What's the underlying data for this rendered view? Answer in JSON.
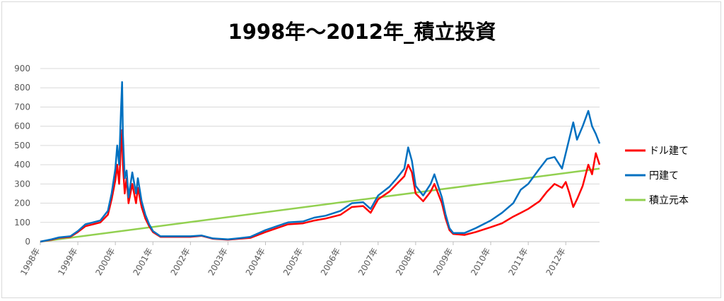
{
  "chart_data": {
    "type": "line",
    "title": "1998年～2012年_積立投資",
    "xlabel": "",
    "ylabel": "",
    "ylim": [
      0,
      900
    ],
    "yticks": [
      0,
      100,
      200,
      300,
      400,
      500,
      600,
      700,
      800,
      900
    ],
    "xlim": [
      1998.0,
      2012.9
    ],
    "xticks": [
      {
        "value": 1998,
        "label": "1998年"
      },
      {
        "value": 1999,
        "label": "1999年"
      },
      {
        "value": 2000,
        "label": "2000年"
      },
      {
        "value": 2001,
        "label": "2001年"
      },
      {
        "value": 2002,
        "label": "2002年"
      },
      {
        "value": 2003,
        "label": "2003年"
      },
      {
        "value": 2004,
        "label": "2004年"
      },
      {
        "value": 2005,
        "label": "2005年"
      },
      {
        "value": 2006,
        "label": "2006年"
      },
      {
        "value": 2007,
        "label": "2007年"
      },
      {
        "value": 2008,
        "label": "2008年"
      },
      {
        "value": 2009,
        "label": "2009年"
      },
      {
        "value": 2010,
        "label": "2010年"
      },
      {
        "value": 2011,
        "label": "2011年"
      },
      {
        "value": 2012,
        "label": "2012年"
      }
    ],
    "grid": true,
    "legend_position": "right",
    "series": [
      {
        "name": "ドル建て",
        "color": "#ff0000",
        "points": [
          [
            1998.0,
            0
          ],
          [
            1998.3,
            10
          ],
          [
            1998.5,
            20
          ],
          [
            1998.8,
            25
          ],
          [
            1999.0,
            50
          ],
          [
            1999.2,
            80
          ],
          [
            1999.4,
            90
          ],
          [
            1999.6,
            100
          ],
          [
            1999.8,
            140
          ],
          [
            1999.9,
            220
          ],
          [
            2000.0,
            320
          ],
          [
            2000.05,
            400
          ],
          [
            2000.1,
            300
          ],
          [
            2000.15,
            500
          ],
          [
            2000.18,
            580
          ],
          [
            2000.2,
            400
          ],
          [
            2000.25,
            250
          ],
          [
            2000.3,
            330
          ],
          [
            2000.35,
            200
          ],
          [
            2000.45,
            300
          ],
          [
            2000.55,
            200
          ],
          [
            2000.6,
            280
          ],
          [
            2000.7,
            180
          ],
          [
            2000.8,
            120
          ],
          [
            2000.9,
            80
          ],
          [
            2001.0,
            50
          ],
          [
            2001.2,
            25
          ],
          [
            2001.5,
            25
          ],
          [
            2002.0,
            25
          ],
          [
            2002.3,
            30
          ],
          [
            2002.6,
            15
          ],
          [
            2003.0,
            10
          ],
          [
            2003.3,
            15
          ],
          [
            2003.6,
            20
          ],
          [
            2004.0,
            50
          ],
          [
            2004.3,
            70
          ],
          [
            2004.6,
            90
          ],
          [
            2005.0,
            95
          ],
          [
            2005.3,
            110
          ],
          [
            2005.6,
            120
          ],
          [
            2006.0,
            140
          ],
          [
            2006.3,
            180
          ],
          [
            2006.6,
            185
          ],
          [
            2006.8,
            150
          ],
          [
            2007.0,
            220
          ],
          [
            2007.3,
            260
          ],
          [
            2007.5,
            300
          ],
          [
            2007.7,
            340
          ],
          [
            2007.8,
            400
          ],
          [
            2007.9,
            360
          ],
          [
            2008.0,
            250
          ],
          [
            2008.2,
            210
          ],
          [
            2008.4,
            260
          ],
          [
            2008.5,
            300
          ],
          [
            2008.7,
            200
          ],
          [
            2008.8,
            120
          ],
          [
            2008.9,
            60
          ],
          [
            2009.0,
            40
          ],
          [
            2009.3,
            35
          ],
          [
            2009.6,
            50
          ],
          [
            2010.0,
            75
          ],
          [
            2010.3,
            95
          ],
          [
            2010.6,
            130
          ],
          [
            2010.8,
            150
          ],
          [
            2011.0,
            170
          ],
          [
            2011.3,
            210
          ],
          [
            2011.5,
            260
          ],
          [
            2011.7,
            300
          ],
          [
            2011.9,
            280
          ],
          [
            2012.0,
            310
          ],
          [
            2012.1,
            250
          ],
          [
            2012.2,
            180
          ],
          [
            2012.3,
            220
          ],
          [
            2012.45,
            290
          ],
          [
            2012.6,
            400
          ],
          [
            2012.7,
            350
          ],
          [
            2012.8,
            460
          ],
          [
            2012.9,
            400
          ]
        ]
      },
      {
        "name": "円建て",
        "color": "#0070c0",
        "points": [
          [
            1998.0,
            0
          ],
          [
            1998.3,
            12
          ],
          [
            1998.5,
            22
          ],
          [
            1998.8,
            28
          ],
          [
            1999.0,
            55
          ],
          [
            1999.2,
            90
          ],
          [
            1999.4,
            100
          ],
          [
            1999.6,
            110
          ],
          [
            1999.8,
            160
          ],
          [
            1999.9,
            250
          ],
          [
            2000.0,
            380
          ],
          [
            2000.05,
            500
          ],
          [
            2000.1,
            400
          ],
          [
            2000.15,
            680
          ],
          [
            2000.18,
            830
          ],
          [
            2000.2,
            560
          ],
          [
            2000.25,
            330
          ],
          [
            2000.3,
            370
          ],
          [
            2000.35,
            230
          ],
          [
            2000.45,
            360
          ],
          [
            2000.55,
            250
          ],
          [
            2000.6,
            330
          ],
          [
            2000.7,
            210
          ],
          [
            2000.8,
            140
          ],
          [
            2000.9,
            90
          ],
          [
            2001.0,
            55
          ],
          [
            2001.2,
            28
          ],
          [
            2001.5,
            28
          ],
          [
            2002.0,
            28
          ],
          [
            2002.3,
            32
          ],
          [
            2002.6,
            17
          ],
          [
            2003.0,
            12
          ],
          [
            2003.3,
            18
          ],
          [
            2003.6,
            25
          ],
          [
            2004.0,
            60
          ],
          [
            2004.3,
            80
          ],
          [
            2004.6,
            100
          ],
          [
            2005.0,
            105
          ],
          [
            2005.3,
            125
          ],
          [
            2005.6,
            135
          ],
          [
            2006.0,
            160
          ],
          [
            2006.3,
            200
          ],
          [
            2006.6,
            205
          ],
          [
            2006.8,
            170
          ],
          [
            2007.0,
            240
          ],
          [
            2007.3,
            285
          ],
          [
            2007.5,
            330
          ],
          [
            2007.7,
            380
          ],
          [
            2007.8,
            490
          ],
          [
            2007.9,
            420
          ],
          [
            2008.0,
            290
          ],
          [
            2008.2,
            240
          ],
          [
            2008.4,
            300
          ],
          [
            2008.5,
            350
          ],
          [
            2008.7,
            230
          ],
          [
            2008.8,
            140
          ],
          [
            2008.9,
            70
          ],
          [
            2009.0,
            45
          ],
          [
            2009.3,
            45
          ],
          [
            2009.6,
            70
          ],
          [
            2010.0,
            110
          ],
          [
            2010.3,
            150
          ],
          [
            2010.6,
            200
          ],
          [
            2010.8,
            270
          ],
          [
            2011.0,
            300
          ],
          [
            2011.3,
            380
          ],
          [
            2011.5,
            430
          ],
          [
            2011.7,
            440
          ],
          [
            2011.9,
            380
          ],
          [
            2012.0,
            460
          ],
          [
            2012.1,
            540
          ],
          [
            2012.2,
            620
          ],
          [
            2012.3,
            530
          ],
          [
            2012.45,
            600
          ],
          [
            2012.6,
            680
          ],
          [
            2012.7,
            600
          ],
          [
            2012.8,
            560
          ],
          [
            2012.9,
            510
          ]
        ]
      },
      {
        "name": "積立元本",
        "color": "#92d050",
        "points": [
          [
            1998.0,
            0
          ],
          [
            2012.9,
            380
          ]
        ]
      }
    ]
  }
}
